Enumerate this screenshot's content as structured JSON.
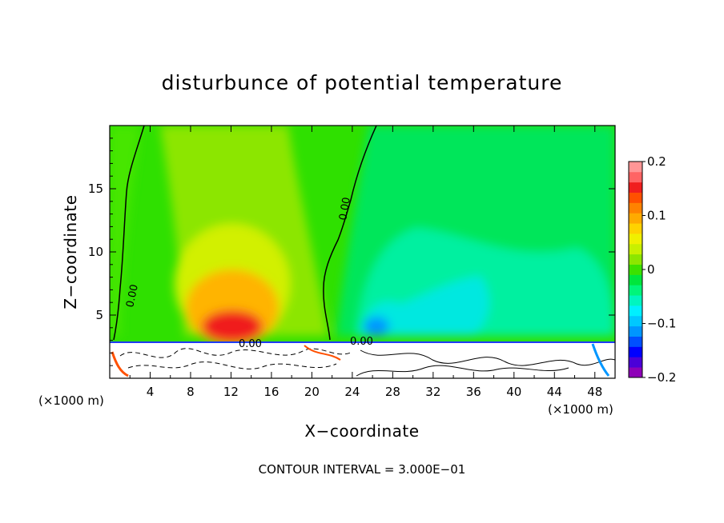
{
  "chart_data": {
    "type": "heatmap",
    "title": "disturbunce of potential temperature",
    "xlabel": "X−coordinate",
    "ylabel": "Z−coordinate",
    "x_unit": "(×1000 m)",
    "z_unit": "(×1000 m)",
    "xlim": [
      0,
      50
    ],
    "ylim": [
      0,
      20
    ],
    "xticks": [
      "4",
      "8",
      "12",
      "16",
      "20",
      "24",
      "28",
      "32",
      "36",
      "40",
      "44",
      "48"
    ],
    "yticks": [
      "5",
      "10",
      "15"
    ],
    "colorbar": {
      "range": [
        -0.2,
        0.2
      ],
      "tick_labels": [
        "0.2",
        "0.1",
        "0",
        "−0.1",
        "−0.2"
      ],
      "colors": [
        "#8e00b8",
        "#4b00d8",
        "#0000ff",
        "#0050ff",
        "#0096ff",
        "#00c8ff",
        "#00f0ff",
        "#00f5c0",
        "#00f57a",
        "#00e63c",
        "#3ce100",
        "#8ce600",
        "#c8f000",
        "#f0f000",
        "#ffd200",
        "#ffaa00",
        "#ff8200",
        "#ff5000",
        "#f01e1e",
        "#ff6464",
        "#ff9696"
      ]
    },
    "contour_labels": [
      "0.00",
      "0.00",
      "0.00",
      "0.00"
    ],
    "features": [
      {
        "name": "warm anomaly",
        "x": 11,
        "z": 4,
        "peak": 0.16
      },
      {
        "name": "cold anomaly",
        "x": 26,
        "z": 4,
        "peak": -0.09
      },
      {
        "name": "zero contour",
        "x": 21,
        "z": 10,
        "value": 0.0
      }
    ]
  },
  "footer": "CONTOUR INTERVAL = 3.000E−01"
}
